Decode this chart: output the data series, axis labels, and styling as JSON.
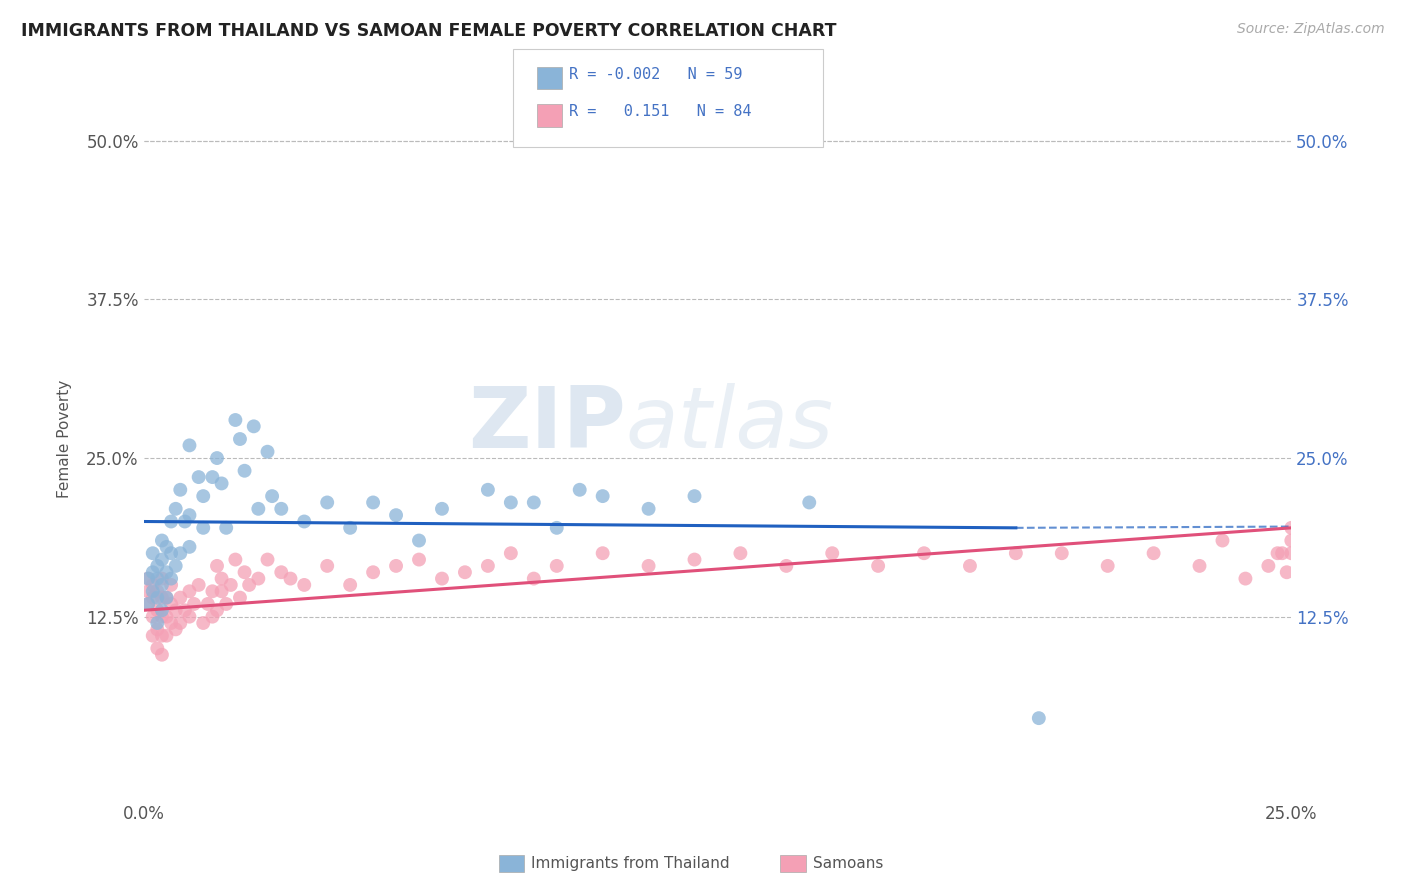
{
  "title": "IMMIGRANTS FROM THAILAND VS SAMOAN FEMALE POVERTY CORRELATION CHART",
  "source": "Source: ZipAtlas.com",
  "ylabel": "Female Poverty",
  "xlim": [
    0.0,
    0.25
  ],
  "ylim": [
    -0.02,
    0.55
  ],
  "xtick_labels": [
    "0.0%",
    "25.0%"
  ],
  "xtick_positions": [
    0.0,
    0.25
  ],
  "ytick_labels": [
    "12.5%",
    "25.0%",
    "37.5%",
    "50.0%"
  ],
  "ytick_positions": [
    0.125,
    0.25,
    0.375,
    0.5
  ],
  "legend_R1": "-0.002",
  "legend_N1": "59",
  "legend_R2": "0.151",
  "legend_N2": "84",
  "color_blue": "#8ab4d8",
  "color_pink": "#f4a0b5",
  "color_blue_line": "#2060c0",
  "color_pink_line": "#e0507a",
  "watermark_zip": "ZIP",
  "watermark_atlas": "atlas",
  "grid_color": "#bbbbbb",
  "background_color": "#ffffff",
  "blue_scatter_x": [
    0.001,
    0.001,
    0.002,
    0.002,
    0.002,
    0.003,
    0.003,
    0.003,
    0.003,
    0.004,
    0.004,
    0.004,
    0.004,
    0.005,
    0.005,
    0.005,
    0.006,
    0.006,
    0.006,
    0.007,
    0.007,
    0.008,
    0.008,
    0.009,
    0.01,
    0.01,
    0.01,
    0.012,
    0.013,
    0.013,
    0.015,
    0.016,
    0.017,
    0.018,
    0.02,
    0.021,
    0.022,
    0.024,
    0.025,
    0.027,
    0.028,
    0.03,
    0.035,
    0.04,
    0.045,
    0.05,
    0.055,
    0.06,
    0.065,
    0.075,
    0.08,
    0.085,
    0.09,
    0.095,
    0.1,
    0.11,
    0.12,
    0.145,
    0.195
  ],
  "blue_scatter_y": [
    0.155,
    0.135,
    0.145,
    0.16,
    0.175,
    0.12,
    0.14,
    0.155,
    0.165,
    0.13,
    0.15,
    0.17,
    0.185,
    0.14,
    0.16,
    0.18,
    0.155,
    0.175,
    0.2,
    0.165,
    0.21,
    0.175,
    0.225,
    0.2,
    0.18,
    0.205,
    0.26,
    0.235,
    0.195,
    0.22,
    0.235,
    0.25,
    0.23,
    0.195,
    0.28,
    0.265,
    0.24,
    0.275,
    0.21,
    0.255,
    0.22,
    0.21,
    0.2,
    0.215,
    0.195,
    0.215,
    0.205,
    0.185,
    0.21,
    0.225,
    0.215,
    0.215,
    0.195,
    0.225,
    0.22,
    0.21,
    0.22,
    0.215,
    0.045
  ],
  "pink_scatter_x": [
    0.001,
    0.001,
    0.001,
    0.002,
    0.002,
    0.002,
    0.002,
    0.003,
    0.003,
    0.003,
    0.003,
    0.004,
    0.004,
    0.004,
    0.004,
    0.004,
    0.005,
    0.005,
    0.005,
    0.006,
    0.006,
    0.006,
    0.007,
    0.007,
    0.008,
    0.008,
    0.009,
    0.01,
    0.01,
    0.011,
    0.012,
    0.013,
    0.014,
    0.015,
    0.015,
    0.016,
    0.016,
    0.017,
    0.017,
    0.018,
    0.019,
    0.02,
    0.021,
    0.022,
    0.023,
    0.025,
    0.027,
    0.03,
    0.032,
    0.035,
    0.04,
    0.045,
    0.05,
    0.055,
    0.06,
    0.065,
    0.07,
    0.075,
    0.08,
    0.085,
    0.09,
    0.1,
    0.11,
    0.12,
    0.13,
    0.14,
    0.15,
    0.16,
    0.17,
    0.18,
    0.19,
    0.2,
    0.21,
    0.22,
    0.23,
    0.235,
    0.24,
    0.245,
    0.247,
    0.248,
    0.249,
    0.25,
    0.25,
    0.25
  ],
  "pink_scatter_y": [
    0.135,
    0.145,
    0.155,
    0.11,
    0.125,
    0.14,
    0.15,
    0.1,
    0.115,
    0.13,
    0.145,
    0.095,
    0.11,
    0.125,
    0.14,
    0.155,
    0.11,
    0.125,
    0.14,
    0.12,
    0.135,
    0.15,
    0.115,
    0.13,
    0.12,
    0.14,
    0.13,
    0.125,
    0.145,
    0.135,
    0.15,
    0.12,
    0.135,
    0.125,
    0.145,
    0.13,
    0.165,
    0.145,
    0.155,
    0.135,
    0.15,
    0.17,
    0.14,
    0.16,
    0.15,
    0.155,
    0.17,
    0.16,
    0.155,
    0.15,
    0.165,
    0.15,
    0.16,
    0.165,
    0.17,
    0.155,
    0.16,
    0.165,
    0.175,
    0.155,
    0.165,
    0.175,
    0.165,
    0.17,
    0.175,
    0.165,
    0.175,
    0.165,
    0.175,
    0.165,
    0.175,
    0.175,
    0.165,
    0.175,
    0.165,
    0.185,
    0.155,
    0.165,
    0.175,
    0.175,
    0.16,
    0.175,
    0.185,
    0.195
  ],
  "blue_trendline_x": [
    0.0,
    0.19
  ],
  "blue_trendline_y": [
    0.2,
    0.195
  ],
  "pink_trendline_x": [
    0.0,
    0.25
  ],
  "pink_trendline_y": [
    0.13,
    0.195
  ]
}
